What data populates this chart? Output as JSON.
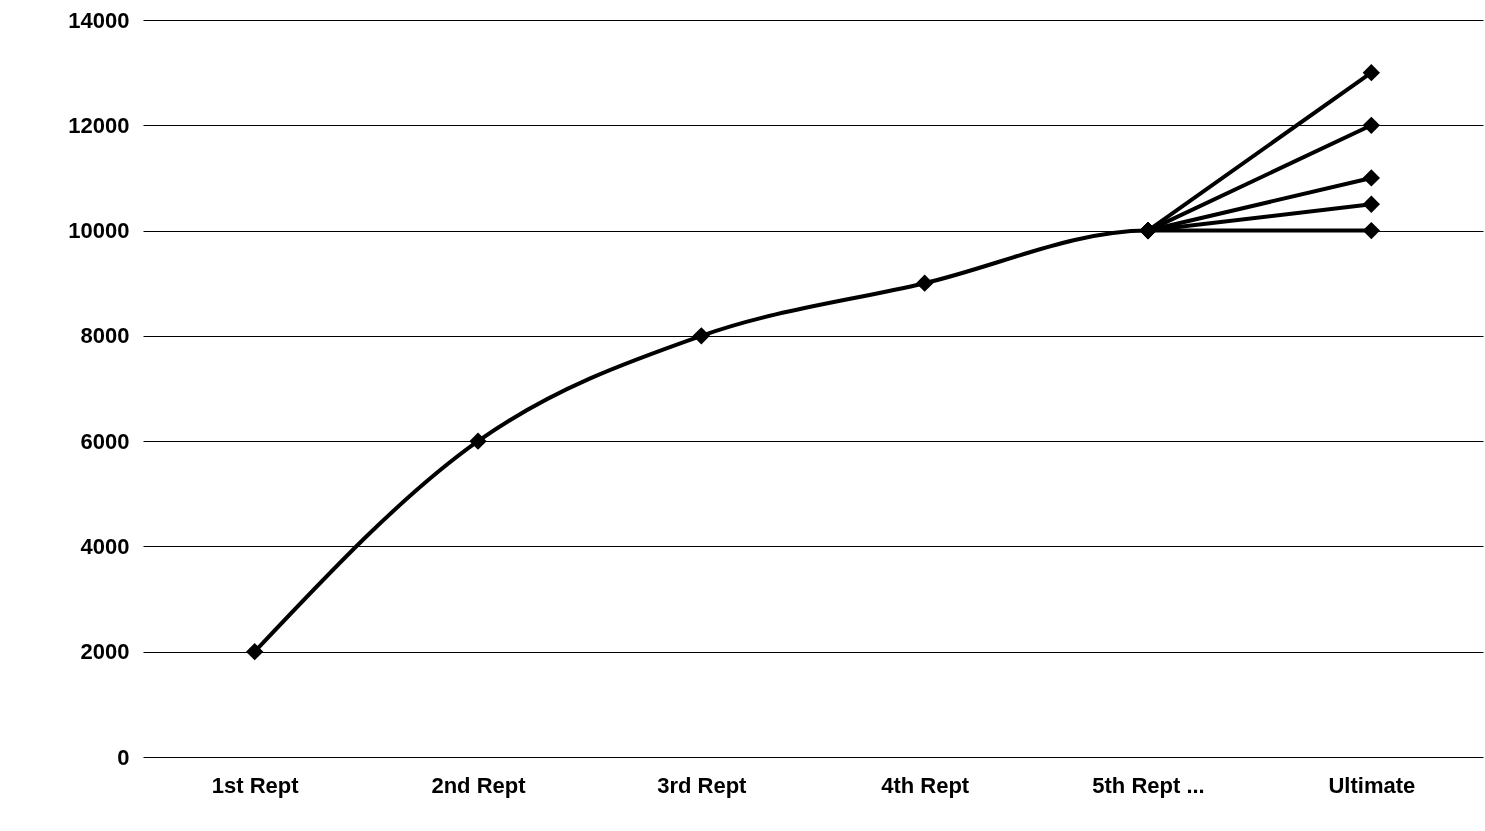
{
  "chart_data": {
    "type": "line",
    "categories": [
      "1st Rept",
      "2nd Rept",
      "3rd Rept",
      "4th Rept",
      "5th Rept ...",
      "Ultimate"
    ],
    "series": [
      {
        "color": "#000000",
        "values": [
          2000,
          6000,
          8000,
          9000,
          10000,
          10000
        ]
      },
      {
        "color": "#000000",
        "values": [
          null,
          null,
          null,
          null,
          10000,
          10500
        ]
      },
      {
        "color": "#000000",
        "values": [
          null,
          null,
          null,
          null,
          10000,
          11000
        ]
      },
      {
        "color": "#000000",
        "values": [
          null,
          null,
          null,
          null,
          10000,
          12000
        ]
      },
      {
        "color": "#000000",
        "values": [
          null,
          null,
          null,
          null,
          10000,
          13000
        ]
      }
    ],
    "ylim": [
      0,
      14000
    ],
    "yticks": [
      0,
      2000,
      4000,
      6000,
      8000,
      10000,
      12000,
      14000
    ],
    "grid": "y",
    "marker": "diamond",
    "line_style": "solid"
  }
}
